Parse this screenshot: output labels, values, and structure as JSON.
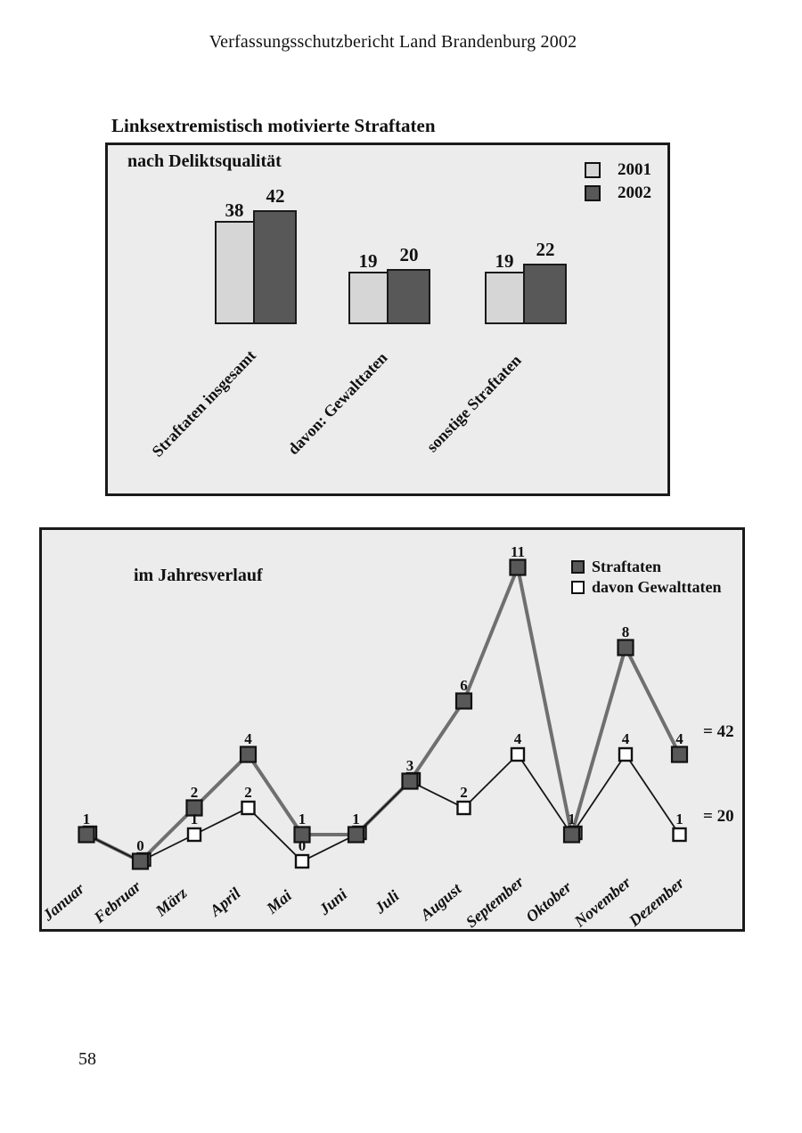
{
  "page": {
    "header": "Verfassungsschutzbericht Land Brandenburg 2002",
    "section_title": "Linksextremistisch motivierte Straftaten",
    "page_number": "58"
  },
  "chart_data": [
    {
      "type": "bar",
      "title": "nach Deliktsqualität",
      "categories": [
        "Straftaten insgesamt",
        "davon: Gewalttaten",
        "sonstige Straftaten"
      ],
      "series": [
        {
          "name": "2001",
          "values": [
            38,
            19,
            19
          ],
          "color": "#d6d6d6"
        },
        {
          "name": "2002",
          "values": [
            42,
            20,
            22
          ],
          "color": "#585858"
        }
      ],
      "xlabel": "",
      "ylabel": "",
      "ylim": [
        0,
        46
      ],
      "grid": false,
      "legend_position": "top-right",
      "data_labels": true
    },
    {
      "type": "line",
      "title": "im Jahresverlauf",
      "categories": [
        "Januar",
        "Februar",
        "März",
        "April",
        "Mai",
        "Juni",
        "Juli",
        "August",
        "September",
        "Oktober",
        "November",
        "Dezember"
      ],
      "series": [
        {
          "name": "Straftaten",
          "values": [
            1,
            0,
            2,
            4,
            1,
            1,
            3,
            6,
            11,
            1,
            8,
            4
          ],
          "total_label": "= 42",
          "color": "#585858",
          "marker": "filled-square"
        },
        {
          "name": "davon Gewalttaten",
          "values": [
            1,
            0,
            1,
            2,
            0,
            1,
            3,
            2,
            4,
            1,
            4,
            1
          ],
          "total_label": "= 20",
          "color": "#ffffff",
          "marker": "open-square"
        }
      ],
      "xlabel": "",
      "ylabel": "",
      "ylim": [
        0,
        12
      ],
      "grid": false,
      "legend_position": "top-right",
      "data_labels": true
    }
  ],
  "style": {
    "panel_bg": "#ececec",
    "border_color": "#1a1a1a",
    "bar_2001_color": "#d6d6d6",
    "bar_2002_color": "#585858",
    "line_straftaten_color": "#6f6f6f",
    "line_gewalttaten_color": "#161616"
  }
}
